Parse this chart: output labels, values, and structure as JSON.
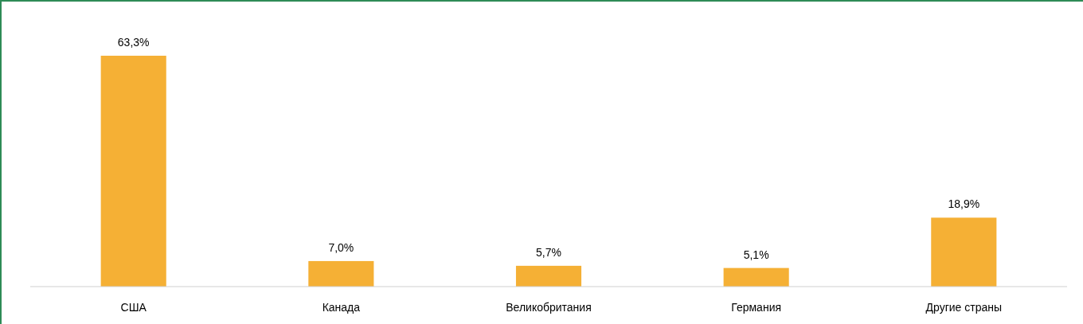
{
  "chart_data": {
    "type": "bar",
    "categories": [
      "США",
      "Канада",
      "Великобритания",
      "Германия",
      "Другие страны"
    ],
    "values": [
      63.3,
      7.0,
      5.7,
      5.1,
      18.9
    ],
    "value_labels": [
      "63,3%",
      "7,0%",
      "5,7%",
      "5,1%",
      "18,9%"
    ],
    "color": "#f5b035",
    "tick_labels": "x"
  }
}
